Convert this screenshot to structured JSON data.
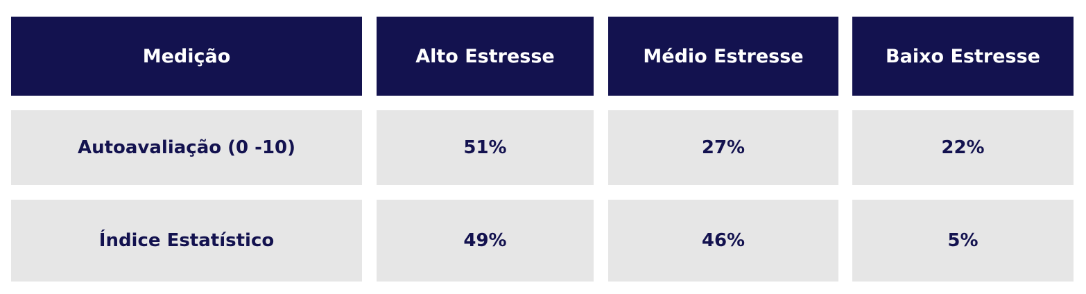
{
  "table": {
    "header": [
      "Medição",
      "Alto Estresse",
      "Médio Estresse",
      "Baixo Estresse"
    ],
    "rows": [
      [
        "Autoavaliação (0 -10)",
        "51%",
        "27%",
        "22%"
      ],
      [
        "Índice Estatístico",
        "49%",
        "46%",
        "5%"
      ]
    ]
  }
}
